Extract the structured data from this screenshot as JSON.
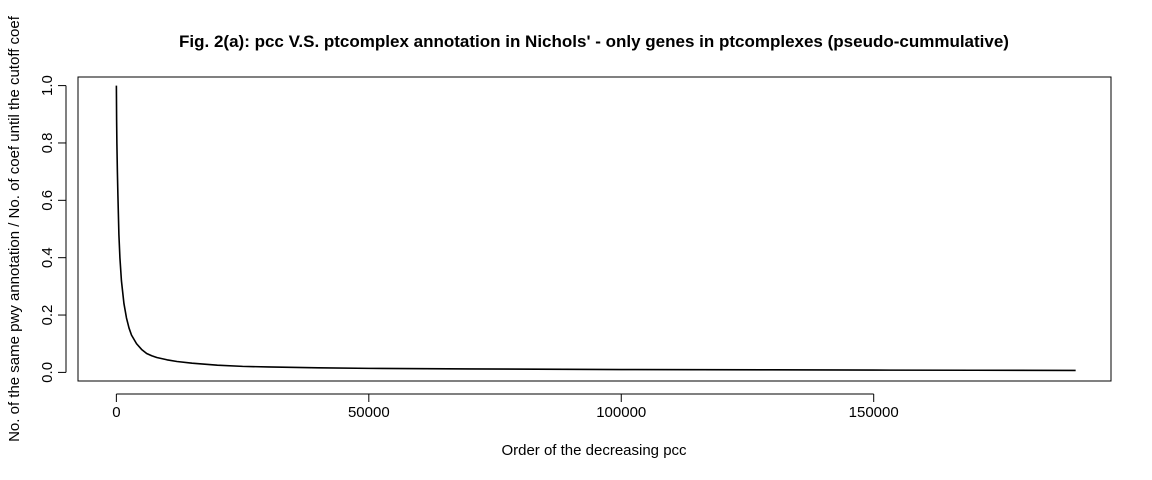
{
  "chart_data": {
    "type": "line",
    "title": "Fig. 2(a): pcc V.S. ptcomplex annotation in Nichols' - only genes in ptcomplexes (pseudo-cummulative)",
    "xlabel": "Order of the decreasing pcc",
    "ylabel": "No. of the same pwy annotation / No. of coef until the  cutoff coef",
    "xlim": [
      -7600,
      197000
    ],
    "ylim": [
      -0.03,
      1.03
    ],
    "x_ticks": [
      0,
      50000,
      100000,
      150000
    ],
    "x_tick_labels": [
      "0",
      "50000",
      "100000",
      "150000"
    ],
    "y_ticks": [
      0.0,
      0.2,
      0.4,
      0.6,
      0.8,
      1.0
    ],
    "y_tick_labels": [
      "0.0",
      "0.2",
      "0.4",
      "0.6",
      "0.8",
      "1.0"
    ],
    "grid": false,
    "series": [
      {
        "x": [
          1,
          50,
          100,
          200,
          300,
          400,
          500,
          700,
          1000,
          1500,
          2000,
          2500,
          3000,
          4000,
          5000,
          6000,
          7000,
          8000,
          10000,
          12000,
          15000,
          20000,
          25000,
          30000,
          40000,
          50000,
          70000,
          100000,
          130000,
          150000,
          170000,
          190000
        ],
        "y": [
          1.0,
          0.88,
          0.8,
          0.7,
          0.62,
          0.55,
          0.48,
          0.4,
          0.32,
          0.24,
          0.19,
          0.155,
          0.13,
          0.1,
          0.08,
          0.066,
          0.058,
          0.052,
          0.044,
          0.038,
          0.032,
          0.025,
          0.021,
          0.019,
          0.016,
          0.014,
          0.012,
          0.01,
          0.009,
          0.008,
          0.0075,
          0.007
        ]
      }
    ]
  }
}
